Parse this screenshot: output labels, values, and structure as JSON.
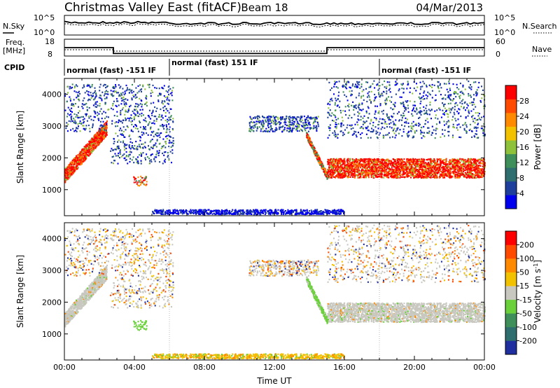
{
  "header": {
    "title": "Christmas Valley East (fitACF)",
    "beam": "Beam 18",
    "date": "04/Mar/2013"
  },
  "top_panels": {
    "nsky_label": "N.Sky",
    "nsearch_label": "N.Search",
    "freq_label_1": "Freq.",
    "freq_label_2": "[MHz]",
    "nave_label": "Nave",
    "cpid_label": "CPID",
    "noise_left_ticks": [
      "10^5",
      "10^0"
    ],
    "noise_right_ticks": [
      "10^5",
      "10^0"
    ],
    "freq_ticks": [
      "18",
      "8"
    ],
    "nave_ticks": [
      "60",
      "0"
    ]
  },
  "cpid_segments": [
    {
      "label": "normal (fast) -151 IF",
      "start_hour": 0,
      "end_hour": 6
    },
    {
      "label": "normal (fast) 151 IF",
      "start_hour": 6,
      "end_hour": 18
    },
    {
      "label": "normal (fast) -151 IF",
      "start_hour": 18,
      "end_hour": 24
    }
  ],
  "colors": {
    "power_scale": [
      "#0000ee",
      "#1f3f9c",
      "#2f6e6e",
      "#3f8f5a",
      "#8ec23a",
      "#f2c200",
      "#ff8a00",
      "#ff4a00",
      "#ff0000"
    ],
    "velocity_scale": [
      "#1f2fa0",
      "#2f6e6e",
      "#3f8f5a",
      "#6ad13a",
      "#c8c8c0",
      "#f2c200",
      "#ff8a00",
      "#ff4a00",
      "#ff0000"
    ]
  },
  "chart_data": [
    {
      "type": "line",
      "panel": "noise",
      "series": [
        {
          "name": "N.Sky",
          "style": "solid"
        },
        {
          "name": "N.Search",
          "style": "dotted"
        }
      ]
    },
    {
      "type": "line",
      "panel": "frequency",
      "ylim": [
        8,
        18
      ],
      "nave_ylim": [
        0,
        60
      ],
      "series": [
        {
          "name": "Freq.",
          "style": "solid",
          "x": [
            0,
            2.8,
            2.8,
            15,
            15,
            24
          ],
          "y": [
            13,
            13,
            9.5,
            9.5,
            13,
            13
          ]
        },
        {
          "name": "Nave",
          "style": "dotted"
        }
      ]
    },
    {
      "type": "heatmap",
      "panel": "power",
      "ylabel": "Slant Range [km]",
      "colorbar_label": "Power [dB]",
      "colorbar_ticks": [
        "28",
        "24",
        "20",
        "16",
        "12",
        "8",
        "4"
      ],
      "xlim": [
        0,
        24
      ],
      "ylim": [
        180,
        4500
      ],
      "yticks": [
        "1000",
        "2000",
        "3000",
        "4000"
      ]
    },
    {
      "type": "heatmap",
      "panel": "velocity",
      "ylabel": "Slant Range [km]",
      "colorbar_label": "Velocity [m s^-1]",
      "colorbar_ticks": [
        "200",
        "100",
        "50",
        "15",
        "-15",
        "-50",
        "-100",
        "-200"
      ],
      "xlim": [
        0,
        24
      ],
      "ylim": [
        180,
        4500
      ],
      "yticks": [
        "1000",
        "2000",
        "3000",
        "4000"
      ],
      "xlabel": "Time UT",
      "xticks": [
        "00:00",
        "04:00",
        "08:00",
        "12:00",
        "16:00",
        "20:00",
        "00:00"
      ]
    }
  ]
}
